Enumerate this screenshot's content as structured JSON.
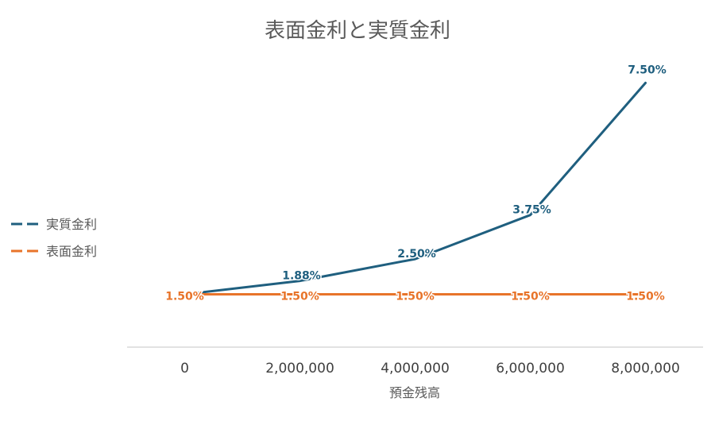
{
  "chart_data": {
    "type": "line",
    "title": "表面金利と実質金利",
    "xlabel": "預金残高",
    "ylabel": "",
    "x": [
      "0",
      "2,000,000",
      "4,000,000",
      "6,000,000",
      "8,000,000"
    ],
    "ylim": [
      0,
      8.5
    ],
    "grid": false,
    "legend_position": "left",
    "series": [
      {
        "name": "実質金利",
        "values": [
          1.5,
          1.88,
          2.5,
          3.75,
          7.5
        ],
        "labels": [
          "",
          "1.88%",
          "2.50%",
          "3.75%",
          "7.50%"
        ],
        "color": "#1f5f7f"
      },
      {
        "name": "表面金利",
        "values": [
          1.5,
          1.5,
          1.5,
          1.5,
          1.5
        ],
        "labels": [
          "1.50%",
          "1.50%",
          "1.50%",
          "1.50%",
          "1.50%"
        ],
        "color": "#e8742a"
      }
    ]
  }
}
